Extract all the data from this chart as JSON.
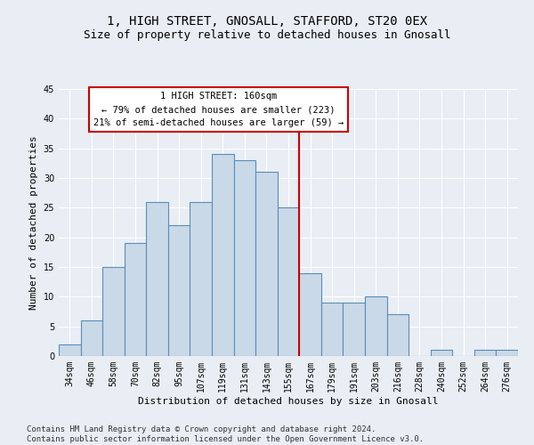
{
  "title": "1, HIGH STREET, GNOSALL, STAFFORD, ST20 0EX",
  "subtitle": "Size of property relative to detached houses in Gnosall",
  "xlabel": "Distribution of detached houses by size in Gnosall",
  "ylabel": "Number of detached properties",
  "categories": [
    "34sqm",
    "46sqm",
    "58sqm",
    "70sqm",
    "82sqm",
    "95sqm",
    "107sqm",
    "119sqm",
    "131sqm",
    "143sqm",
    "155sqm",
    "167sqm",
    "179sqm",
    "191sqm",
    "203sqm",
    "216sqm",
    "228sqm",
    "240sqm",
    "252sqm",
    "264sqm",
    "276sqm"
  ],
  "values": [
    2,
    6,
    15,
    19,
    26,
    22,
    26,
    34,
    33,
    31,
    25,
    14,
    9,
    9,
    10,
    7,
    0,
    1,
    0,
    1,
    1
  ],
  "bar_color": "#c9d9e8",
  "bar_edge_color": "#5b8db8",
  "vline_x": 10.5,
  "vline_color": "#cc0000",
  "annotation_text": "1 HIGH STREET: 160sqm\n← 79% of detached houses are smaller (223)\n21% of semi-detached houses are larger (59) →",
  "annotation_box_color": "#cc0000",
  "ylim": [
    0,
    45
  ],
  "yticks": [
    0,
    5,
    10,
    15,
    20,
    25,
    30,
    35,
    40,
    45
  ],
  "bg_color": "#e8eef4",
  "grid_color": "#ffffff",
  "footer": "Contains HM Land Registry data © Crown copyright and database right 2024.\nContains public sector information licensed under the Open Government Licence v3.0.",
  "title_fontsize": 10,
  "subtitle_fontsize": 9,
  "xlabel_fontsize": 8,
  "ylabel_fontsize": 8,
  "tick_fontsize": 7,
  "annotation_fontsize": 7.5,
  "footer_fontsize": 6.5
}
